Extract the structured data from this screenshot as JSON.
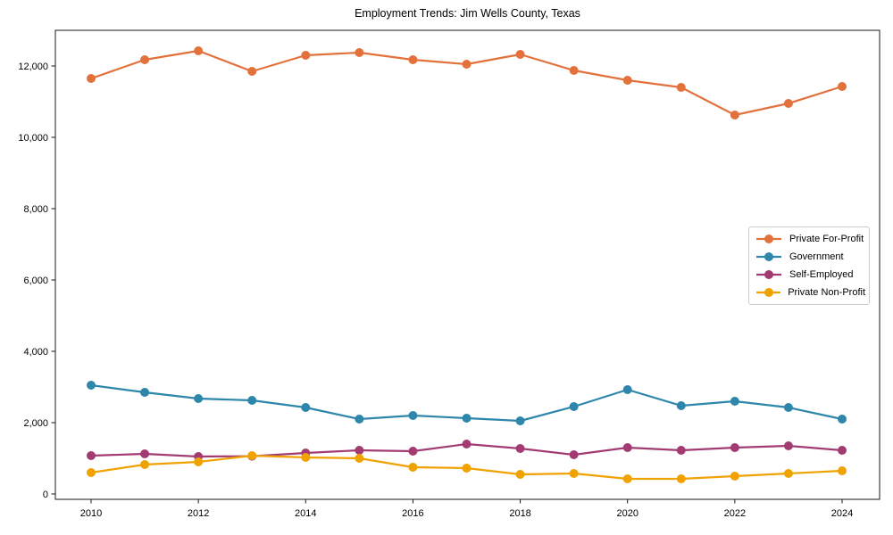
{
  "chart_data": {
    "type": "line",
    "title": "Employment Trends: Jim Wells County, Texas",
    "xlabel": "",
    "ylabel": "",
    "grid": false,
    "marker": "o",
    "legend_position": "center right",
    "x": [
      2010,
      2011,
      2012,
      2013,
      2014,
      2015,
      2016,
      2017,
      2018,
      2019,
      2020,
      2021,
      2022,
      2023,
      2024
    ],
    "xticks": [
      2010,
      2012,
      2014,
      2016,
      2018,
      2020,
      2022,
      2024
    ],
    "xtick_labels": [
      "2010",
      "2012",
      "2014",
      "2016",
      "2018",
      "2020",
      "2022",
      "2024"
    ],
    "yticks": [
      0,
      2000,
      4000,
      6000,
      8000,
      10000,
      12000
    ],
    "ytick_labels": [
      "0",
      "2,000",
      "4,000",
      "6,000",
      "8,000",
      "10,000",
      "12,000"
    ],
    "ylim": [
      -175,
      13025
    ],
    "series": [
      {
        "name": "Private For-Profit",
        "color": "#E2713C",
        "values": [
          11650,
          12175,
          12425,
          11850,
          12300,
          12375,
          12175,
          12050,
          12325,
          11875,
          11600,
          11400,
          10625,
          10950,
          11425
        ]
      },
      {
        "name": "Government",
        "color": "#2E86AB",
        "values": [
          3050,
          2850,
          2675,
          2625,
          2425,
          2100,
          2200,
          2125,
          2050,
          2450,
          2925,
          2475,
          2600,
          2425,
          2100
        ]
      },
      {
        "name": "Self-Employed",
        "color": "#A23B72",
        "values": [
          1075,
          1125,
          1050,
          1060,
          1150,
          1225,
          1200,
          1400,
          1275,
          1100,
          1300,
          1225,
          1300,
          1350,
          1225
        ]
      },
      {
        "name": "Private Non-Profit",
        "color": "#F0A202",
        "values": [
          600,
          825,
          900,
          1075,
          1025,
          1000,
          750,
          725,
          550,
          575,
          425,
          425,
          500,
          575,
          650
        ]
      }
    ]
  }
}
